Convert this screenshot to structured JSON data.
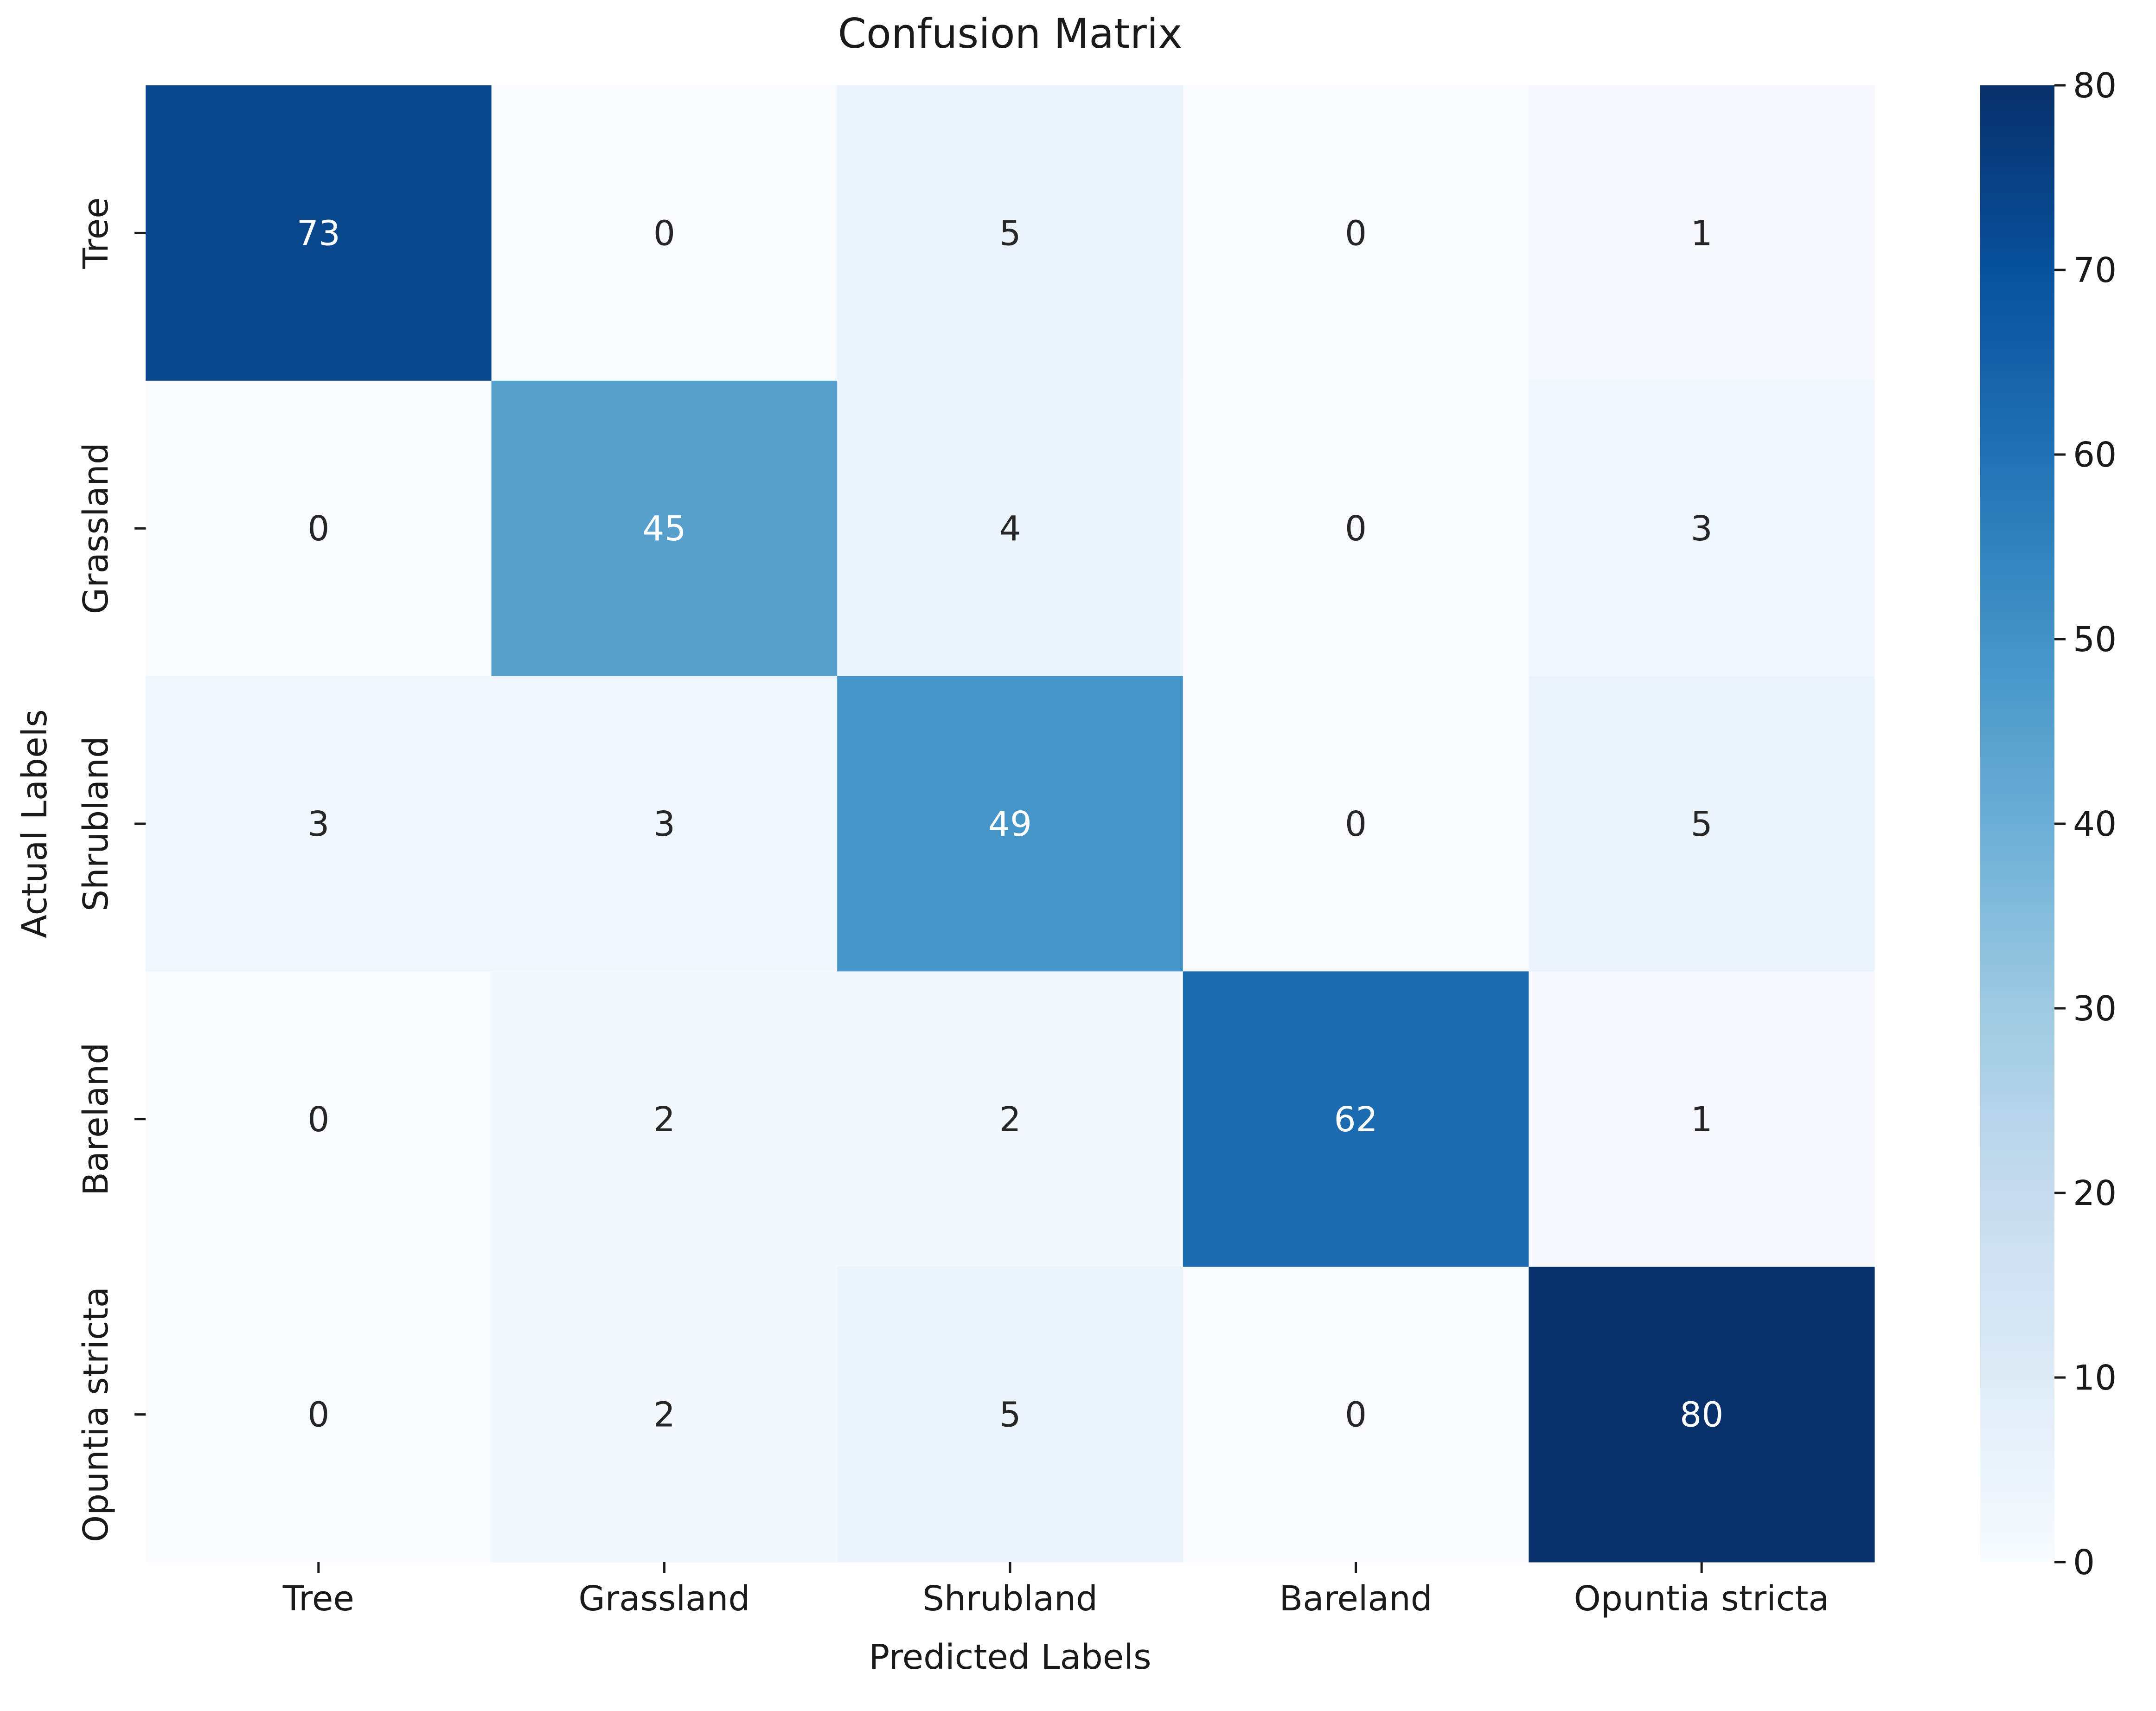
{
  "chart_data": {
    "type": "heatmap",
    "title": "Confusion Matrix",
    "xlabel": "Predicted Labels",
    "ylabel": "Actual Labels",
    "x_categories": [
      "Tree",
      "Grassland",
      "Shrubland",
      "Bareland",
      "Opuntia stricta"
    ],
    "y_categories": [
      "Tree",
      "Grassland",
      "Shrubland",
      "Bareland",
      "Opuntia stricta"
    ],
    "values": [
      [
        73,
        0,
        5,
        0,
        1
      ],
      [
        0,
        45,
        4,
        0,
        3
      ],
      [
        3,
        3,
        49,
        0,
        5
      ],
      [
        0,
        2,
        2,
        62,
        1
      ],
      [
        0,
        2,
        5,
        0,
        80
      ]
    ],
    "colorscale": "Blues",
    "colorbar": {
      "range": [
        0,
        80
      ],
      "ticks": [
        0,
        10,
        20,
        30,
        40,
        50,
        60,
        70,
        80
      ]
    },
    "grid": false,
    "annotations": "cell values shown"
  }
}
